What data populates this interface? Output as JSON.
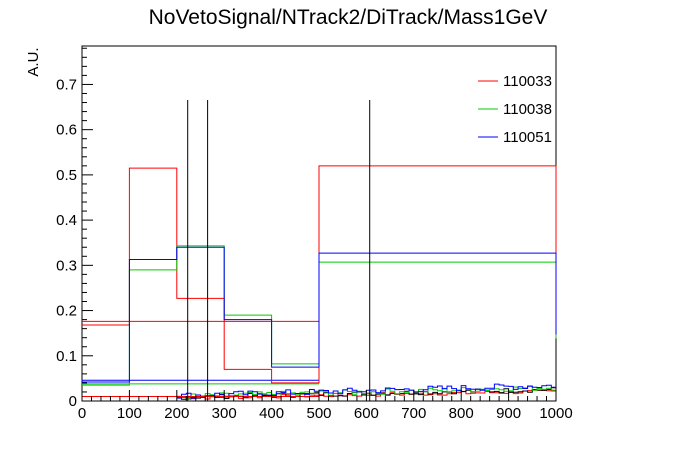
{
  "chart_data": {
    "type": "step-histogram",
    "title": "NoVetoSignal/NTrack2/DiTrack/Mass1GeV",
    "xlabel": "",
    "ylabel": "A.U.",
    "xlim": [
      0,
      1000
    ],
    "ylim": [
      0,
      0.785
    ],
    "grid": false,
    "legend_position": "top-right",
    "x_ticks": [
      0,
      100,
      200,
      300,
      400,
      500,
      600,
      700,
      800,
      900,
      1000
    ],
    "x_tick_labels": [
      "0",
      "100",
      "200",
      "300",
      "400",
      "500",
      "600",
      "700",
      "800",
      "900",
      "1000"
    ],
    "y_ticks": [
      0,
      0.1,
      0.2,
      0.3,
      0.4,
      0.5,
      0.6,
      0.7
    ],
    "y_tick_labels": [
      "0",
      "0.1",
      "0.2",
      "0.3",
      "0.4",
      "0.5",
      "0.6",
      "0.7"
    ],
    "bin_edges": [
      0,
      100,
      200,
      300,
      400,
      500,
      1000
    ],
    "series": [
      {
        "name": "110033",
        "color": "#ff0000",
        "values": [
          0.168,
          0.515,
          0.227,
          0.07,
          0.04,
          0.52
        ]
      },
      {
        "name": "110038",
        "color": "#00cc00",
        "values": [
          0.035,
          0.29,
          0.343,
          0.19,
          0.082,
          0.307
        ]
      },
      {
        "name": "110051",
        "color": "#0000ff",
        "values": [
          0.042,
          0.313,
          0.34,
          0.18,
          0.075,
          0.327
        ]
      }
    ],
    "overlay_lines": [
      {
        "color": "#ff0000",
        "x": [
          0,
          500
        ],
        "y": [
          0.176,
          0.176
        ]
      },
      {
        "color": "#ff0000",
        "x": [
          0,
          500
        ],
        "y": [
          0.01,
          0.01
        ]
      },
      {
        "color": "#00cc00",
        "x": [
          0,
          500
        ],
        "y": [
          0.038,
          0.038
        ]
      },
      {
        "color": "#0000ff",
        "x": [
          0,
          500
        ],
        "y": [
          0.046,
          0.046
        ]
      }
    ],
    "vertical_lines": [
      223,
      265,
      607
    ],
    "tail_noise_range": [
      200,
      1000
    ]
  }
}
